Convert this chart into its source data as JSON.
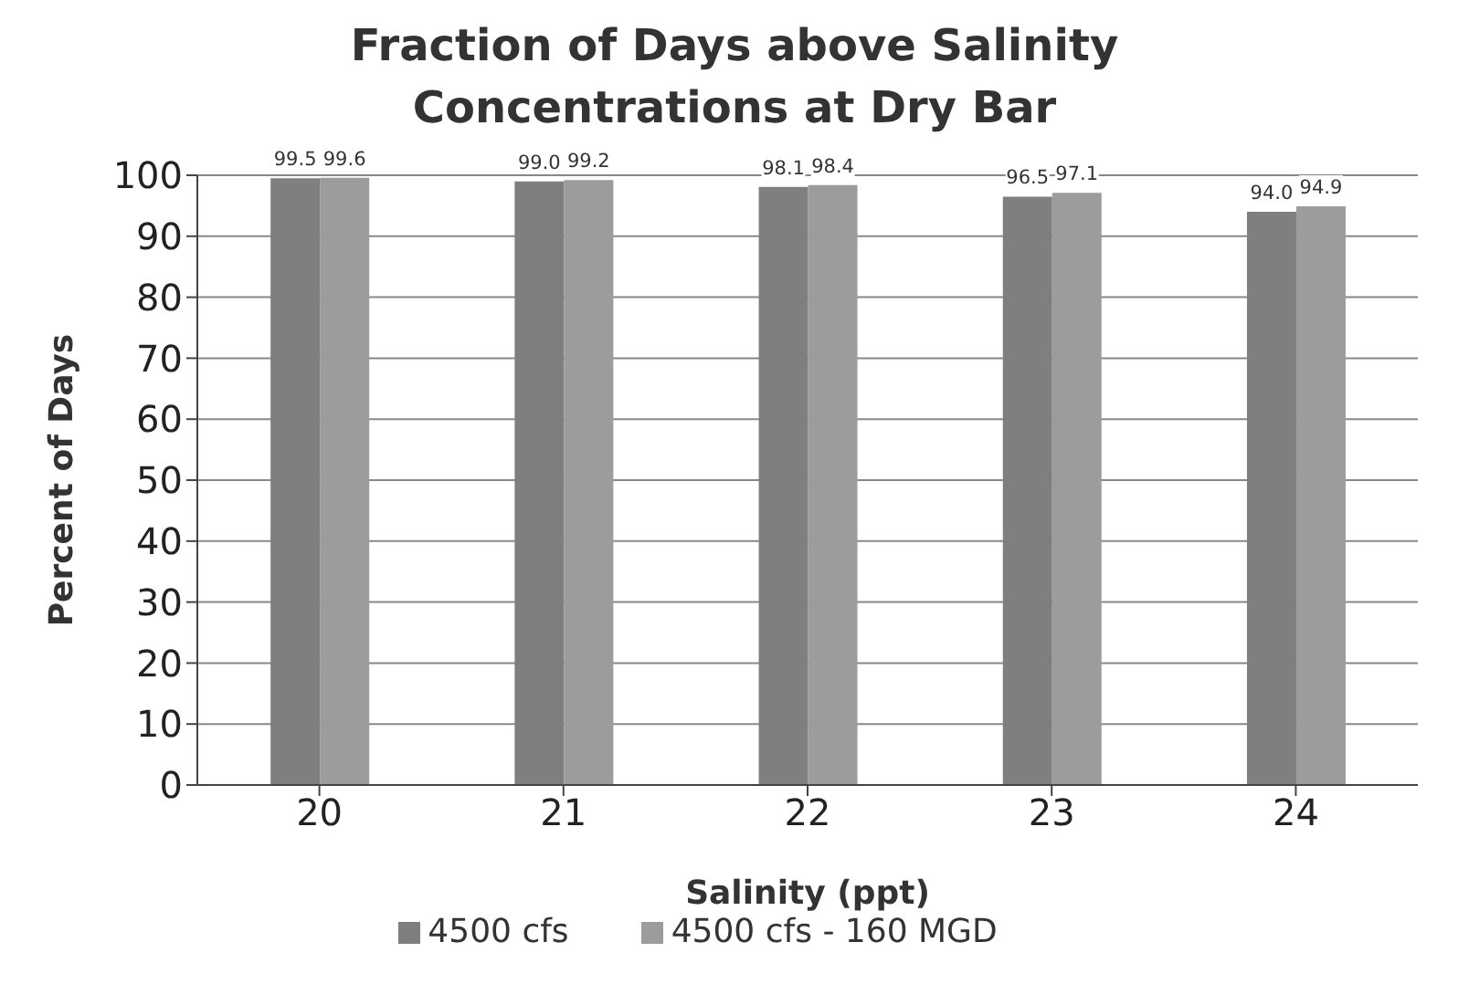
{
  "chart_data": {
    "type": "bar",
    "title": "Fraction of Days above Salinity Concentrations at Dry Bar",
    "xlabel": "Salinity (ppt)",
    "ylabel": "Percent of Days",
    "categories": [
      "20",
      "21",
      "22",
      "23",
      "24"
    ],
    "series": [
      {
        "name": "4500 cfs",
        "color": "#7f7f7f",
        "values": [
          99.5,
          99.0,
          98.1,
          96.5,
          94.0
        ],
        "value_labels": [
          "99.5",
          "99.0",
          "98.1",
          "96.5",
          "94.0"
        ]
      },
      {
        "name": "4500 cfs - 160 MGD",
        "color": "#9c9c9c",
        "values": [
          99.6,
          99.2,
          98.4,
          97.1,
          94.9
        ],
        "value_labels": [
          "99.6",
          "99.2",
          "98.4",
          "97.1",
          "94.9"
        ]
      }
    ],
    "ylim": [
      0,
      100
    ],
    "yticks": [
      0,
      10,
      20,
      30,
      40,
      50,
      60,
      70,
      80,
      90,
      100
    ],
    "grid": "y",
    "legend": "bottom"
  }
}
